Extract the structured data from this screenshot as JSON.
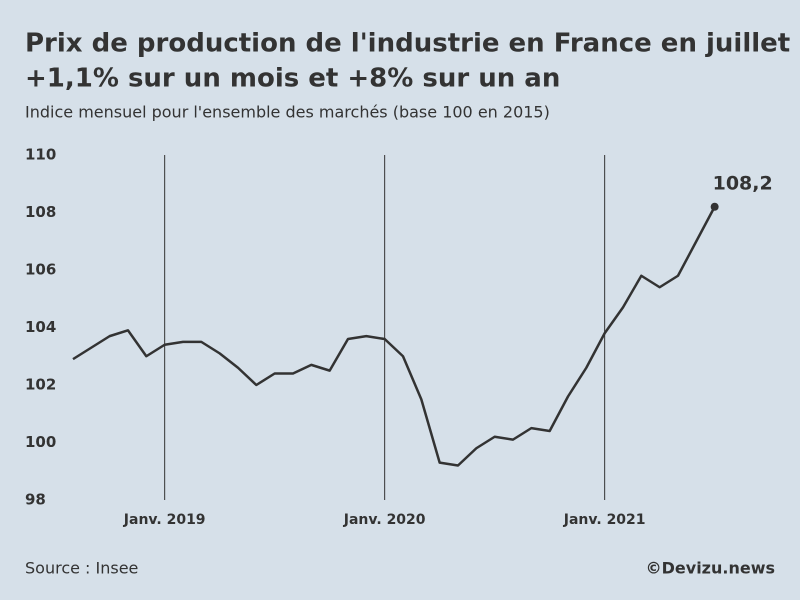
{
  "chart_data": {
    "type": "line",
    "title": "Prix de production de l'industrie en France en juillet :",
    "title_line2": "+1,1% sur un mois et +8% sur un an",
    "subtitle": "Indice mensuel pour l'ensemble des marchés (base 100 en 2015)",
    "source": "Source : Insee",
    "credit": "©Devizu.news",
    "categories": [
      null,
      null,
      null,
      null,
      null,
      "Janv. 2019",
      null,
      null,
      null,
      null,
      null,
      null,
      null,
      null,
      null,
      null,
      null,
      "Janv. 2020",
      null,
      null,
      null,
      null,
      null,
      null,
      null,
      null,
      null,
      null,
      null,
      "Janv. 2021",
      null,
      null,
      null,
      null,
      null,
      null
    ],
    "series": [
      {
        "name": "Indice",
        "color": "#333333",
        "values": [
          102.9,
          103.3,
          103.7,
          103.9,
          103.0,
          103.4,
          103.5,
          103.5,
          103.1,
          102.6,
          102.0,
          102.4,
          102.4,
          102.7,
          102.5,
          103.6,
          103.7,
          103.6,
          103.0,
          101.5,
          99.3,
          99.2,
          99.8,
          100.2,
          100.1,
          100.5,
          100.4,
          101.6,
          102.6,
          103.8,
          104.7,
          105.8,
          105.4,
          105.8,
          107.0,
          108.2
        ]
      }
    ],
    "annotation": "108,2",
    "ylim": [
      98,
      110
    ],
    "yticks": [
      98,
      100,
      102,
      104,
      106,
      108,
      110
    ],
    "x_grid": true
  }
}
